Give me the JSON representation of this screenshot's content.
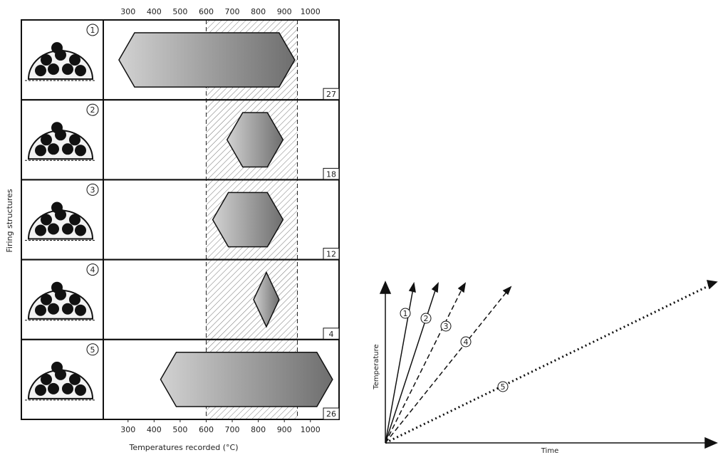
{
  "chart_data": {
    "type": "range",
    "x_label": "Temperatures recorded (°C)",
    "y_label": "Firing structures",
    "categories": [
      "1",
      "2",
      "3",
      "4",
      "5"
    ],
    "low": [
      265,
      680,
      625,
      782,
      425
    ],
    "high": [
      940,
      895,
      895,
      880,
      1085
    ],
    "counts": [
      27,
      18,
      12,
      4,
      26
    ],
    "band": [
      600,
      950
    ],
    "xlim": [
      205,
      1110
    ],
    "xticks": [
      300,
      400,
      500,
      600,
      700,
      800,
      900,
      1000
    ]
  },
  "diagram": {
    "x_label": "Time",
    "y_label": "Temperature",
    "lines": [
      "1",
      "2",
      "3",
      "4",
      "5"
    ]
  }
}
